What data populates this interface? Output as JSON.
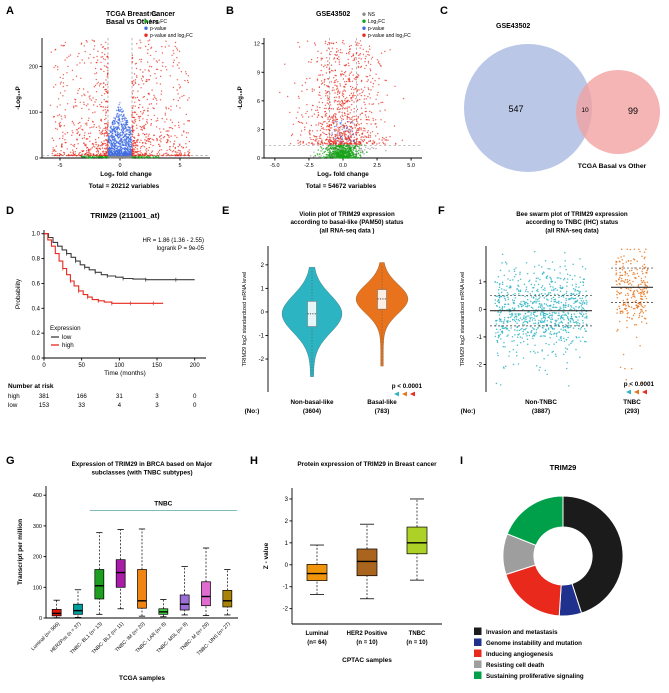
{
  "panels": {
    "A": {
      "letter": "A",
      "caption": "Total = 20212 variables"
    },
    "B": {
      "letter": "B",
      "caption": "Total = 54672 variables"
    },
    "C": {
      "letter": "C"
    },
    "D": {
      "letter": "D"
    },
    "E": {
      "letter": "E"
    },
    "F": {
      "letter": "F"
    },
    "G": {
      "letter": "G"
    },
    "H": {
      "letter": "H"
    },
    "I": {
      "letter": "I"
    }
  },
  "chart_data": [
    {
      "panel": "A",
      "type": "scatter",
      "variant": "volcano",
      "title_lines": [
        "TCGA Breast Cancer",
        "Basal vs Others"
      ],
      "xlabel": "Log₂ fold change",
      "ylabel": "-Log₁₀P",
      "xlim": [
        -6.5,
        7.5
      ],
      "ylim": [
        0,
        262
      ],
      "xticks": [
        -5,
        0,
        5
      ],
      "xtick_labels": [
        "-5",
        "0",
        "5"
      ],
      "yticks": [
        0,
        100,
        200
      ],
      "ytick_labels": [
        "0",
        "100",
        "200"
      ],
      "fc_cutoff": 1,
      "p_cutoff": 5,
      "legend": [
        {
          "label": "NS",
          "color": "#8a8a8a"
        },
        {
          "label": "Log₂FC",
          "color": "#17a317"
        },
        {
          "label": "p-value",
          "color": "#3d6be0"
        },
        {
          "label": "p-value and log₂FC",
          "color": "#e8291c"
        }
      ],
      "total_variables": 20212
    },
    {
      "panel": "B",
      "type": "scatter",
      "variant": "volcano",
      "title_lines": [
        "GSE43502"
      ],
      "xlabel": "Log₂ fold change",
      "ylabel": "-Log₁₀P",
      "xlim": [
        -5.8,
        5.8
      ],
      "ylim": [
        0,
        12.6
      ],
      "xticks": [
        -5,
        -2.5,
        0,
        2.5,
        5
      ],
      "xtick_labels": [
        "-5.0",
        "-2.5",
        "0.0",
        "2.5",
        "5.0"
      ],
      "yticks": [
        0,
        3,
        6,
        9,
        12
      ],
      "ytick_labels": [
        "0",
        "3",
        "6",
        "9",
        "12"
      ],
      "fc_cutoff": 1,
      "p_cutoff": 1.3,
      "legend": [
        {
          "label": "NS",
          "color": "#8a8a8a"
        },
        {
          "label": "Log₂FC",
          "color": "#17a317"
        },
        {
          "label": "p-value",
          "color": "#3d6be0"
        },
        {
          "label": "p-value and log₂FC",
          "color": "#e8291c"
        }
      ],
      "total_variables": 54672
    },
    {
      "panel": "C",
      "type": "venn",
      "left": {
        "label": "GSE43502",
        "count": "547",
        "color": "#b5c2e4"
      },
      "right": {
        "label": "TCGA Basal vs Other",
        "count": "99",
        "color": "#f2a0a0"
      },
      "overlap": "10"
    },
    {
      "panel": "D",
      "type": "line",
      "variant": "kaplan-meier",
      "title": "TRIM29 (211001_at)",
      "hr_text": "HR = 1.86 (1.36 - 2.55)",
      "logrank_text": "logrank P = 9e-05",
      "xlabel": "Time (months)",
      "ylabel": "Probability",
      "xlim": [
        0,
        215
      ],
      "ylim": [
        0,
        1.03
      ],
      "xticks": [
        0,
        50,
        100,
        150,
        200
      ],
      "xtick_labels": [
        "0",
        "50",
        "100",
        "150",
        "200"
      ],
      "yticks": [
        0,
        0.2,
        0.4,
        0.6,
        0.8,
        1.0
      ],
      "ytick_labels": [
        "0.0",
        "0.2",
        "0.4",
        "0.6",
        "0.8",
        "1.0"
      ],
      "legend_title": "Expression",
      "series": [
        {
          "name": "low",
          "color": "#3f3f3f",
          "points": [
            [
              0,
              1
            ],
            [
              6,
              0.97
            ],
            [
              12,
              0.93
            ],
            [
              18,
              0.9
            ],
            [
              24,
              0.87
            ],
            [
              30,
              0.84
            ],
            [
              36,
              0.81
            ],
            [
              42,
              0.78
            ],
            [
              48,
              0.75
            ],
            [
              54,
              0.73
            ],
            [
              60,
              0.71
            ],
            [
              68,
              0.69
            ],
            [
              76,
              0.67
            ],
            [
              84,
              0.66
            ],
            [
              95,
              0.65
            ],
            [
              105,
              0.64
            ],
            [
              118,
              0.635
            ],
            [
              135,
              0.63
            ],
            [
              150,
              0.63
            ],
            [
              175,
              0.63
            ],
            [
              200,
              0.63
            ]
          ]
        },
        {
          "name": "high",
          "color": "#e8291c",
          "points": [
            [
              0,
              1
            ],
            [
              5,
              0.95
            ],
            [
              10,
              0.9
            ],
            [
              15,
              0.84
            ],
            [
              20,
              0.78
            ],
            [
              25,
              0.72
            ],
            [
              30,
              0.67
            ],
            [
              35,
              0.62
            ],
            [
              40,
              0.58
            ],
            [
              46,
              0.54
            ],
            [
              52,
              0.51
            ],
            [
              58,
              0.49
            ],
            [
              64,
              0.47
            ],
            [
              72,
              0.46
            ],
            [
              80,
              0.45
            ],
            [
              90,
              0.44
            ],
            [
              100,
              0.44
            ],
            [
              115,
              0.44
            ],
            [
              130,
              0.44
            ],
            [
              145,
              0.44
            ],
            [
              158,
              0.44
            ]
          ]
        }
      ],
      "risk_table": {
        "title": "Number at risk",
        "rows": [
          {
            "label": "high",
            "color": "#2b2b2b",
            "values": [
              "381",
              "166",
              "31",
              "3",
              "0"
            ]
          },
          {
            "label": "low",
            "color": "#e8291c",
            "values": [
              "153",
              "33",
              "4",
              "3",
              "0"
            ]
          }
        ]
      }
    },
    {
      "panel": "E",
      "type": "violin",
      "title_lines": [
        "Violin plot of TRIM29 expression",
        "according to basal-like (PAM50) status",
        "(all RNA-seq data )"
      ],
      "ylabel": "TRIM29 log2 standardized mRNA level",
      "ylim": [
        -3.4,
        2.8
      ],
      "yticks": [
        -2,
        -1,
        0,
        1,
        2
      ],
      "ytick_labels": [
        "-2",
        "-1",
        "0",
        "1",
        "2"
      ],
      "x_axis_prefix": "(No:)",
      "p_text": "p < 0.0001",
      "groups": [
        {
          "name": "Non-basal-like",
          "n": "(3604)",
          "color": "#2db4c3",
          "median": -0.08,
          "q1": -0.62,
          "q3": 0.45,
          "min": -2.75,
          "max": 1.9
        },
        {
          "name": "Basal-like",
          "n": "(783)",
          "color": "#e8731c",
          "median": 0.55,
          "q1": 0.12,
          "q3": 0.95,
          "min": -2.3,
          "max": 2.1
        }
      ]
    },
    {
      "panel": "F",
      "type": "beeswarm",
      "title_lines": [
        "Bee swarm plot of TRIM29 expression",
        "according to TNBC (IHC) status",
        "(all RNA-seq data)"
      ],
      "ylabel": "TRIM29 log2 standardized mRNA level",
      "ylim": [
        -3.0,
        2.3
      ],
      "yticks": [
        -2,
        -1,
        0,
        1
      ],
      "ytick_labels": [
        "-2",
        "-1",
        "0",
        "1"
      ],
      "x_axis_prefix": "(No:)",
      "p_text": "p < 0.0001",
      "groups": [
        {
          "name": "Non-TNBC",
          "n": "(3887)",
          "color": "#2db4c3",
          "median": -0.05,
          "q1": -0.6,
          "q3": 0.5,
          "mean": -0.05,
          "sd": 0.72
        },
        {
          "name": "TNBC",
          "n": "(293)",
          "color": "#e8731c",
          "median": 0.8,
          "q1": 0.25,
          "q3": 1.5,
          "mean": 0.75,
          "sd": 0.75
        }
      ]
    },
    {
      "panel": "G",
      "type": "box",
      "title_lines": [
        "Expression of TRIM29 in BRCA based on Major",
        "subclasses (with TNBC subtypes)"
      ],
      "xlabel": "TCGA samples",
      "ylabel": "Transcript per million",
      "ylim": [
        0,
        430
      ],
      "yticks": [
        0,
        100,
        200,
        300,
        400
      ],
      "ytick_labels": [
        "0",
        "100",
        "200",
        "300",
        "400"
      ],
      "bracket": {
        "label": "TNBC",
        "from": 2,
        "to": 8,
        "y": 350
      },
      "categories": [
        {
          "label": "Luminal (n= 566)",
          "color": "#e3170d",
          "whislo": 1,
          "q1": 7,
          "med": 15,
          "q3": 28,
          "whishi": 58
        },
        {
          "label": "HER2Pos (n = 37)",
          "color": "#009d9d",
          "whislo": 2,
          "q1": 12,
          "med": 24,
          "q3": 45,
          "whishi": 92
        },
        {
          "label": "TNBC- BL1 (n= 13)",
          "color": "#1e9e1e",
          "whislo": 12,
          "q1": 62,
          "med": 105,
          "q3": 158,
          "whishi": 278
        },
        {
          "label": "TNBC- BL2 (n= 11)",
          "color": "#a81ca8",
          "whislo": 30,
          "q1": 100,
          "med": 148,
          "q3": 190,
          "whishi": 288
        },
        {
          "label": "TNBC- IM (n= 20)",
          "color": "#f08514",
          "whislo": 6,
          "q1": 32,
          "med": 56,
          "q3": 158,
          "whishi": 290
        },
        {
          "label": "TNBC- LAR (n= 8)",
          "color": "#3ecc3e",
          "whislo": 4,
          "q1": 12,
          "med": 20,
          "q3": 30,
          "whishi": 60
        },
        {
          "label": "TNBC- MSL (n= 8)",
          "color": "#9b6fd6",
          "whislo": 10,
          "q1": 26,
          "med": 45,
          "q3": 75,
          "whishi": 168
        },
        {
          "label": "TNBC- M (n= 29)",
          "color": "#df6cce",
          "whislo": 8,
          "q1": 40,
          "med": 70,
          "q3": 118,
          "whishi": 228
        },
        {
          "label": "TNBC- UNS (n= 27)",
          "color": "#a98307",
          "whislo": 10,
          "q1": 36,
          "med": 56,
          "q3": 90,
          "whishi": 158
        }
      ]
    },
    {
      "panel": "H",
      "type": "box",
      "title_lines": [
        "Protein expression of TRIM29 in Breast cancer"
      ],
      "xlabel": "CPTAC samples",
      "ylabel": "Z - value",
      "ylim": [
        -2.7,
        3.5
      ],
      "yticks": [
        -2,
        -1,
        0,
        1,
        2,
        3
      ],
      "ytick_labels": [
        "-2",
        "-1",
        "0",
        "1",
        "2",
        "3"
      ],
      "categories": [
        {
          "label": "Luminal",
          "n": "(n= 64)",
          "color": "#f0940a",
          "whislo": -1.35,
          "q1": -0.72,
          "med": -0.4,
          "q3": 0.02,
          "whishi": 0.9
        },
        {
          "label": "HER2 Positive",
          "n": "(n = 10)",
          "color": "#a9641e",
          "whislo": -1.55,
          "q1": -0.5,
          "med": 0.15,
          "q3": 0.72,
          "whishi": 1.85
        },
        {
          "label": "TNBC",
          "n": "(n = 10)",
          "color": "#aed127",
          "whislo": -0.7,
          "q1": 0.5,
          "med": 1.0,
          "q3": 1.72,
          "whishi": 3.0
        }
      ]
    },
    {
      "panel": "I",
      "type": "pie",
      "variant": "donut",
      "title": "TRIM29",
      "slices": [
        {
          "label": "Invasion and metastasis",
          "color": "#1b1b1b",
          "pct": 45
        },
        {
          "label": "Genome instability and mutation",
          "color": "#20318d",
          "pct": 6
        },
        {
          "label": "Inducing angiogenesis",
          "color": "#e8291c",
          "pct": 19
        },
        {
          "label": "Resisting cell death",
          "color": "#9e9e9e",
          "pct": 11
        },
        {
          "label": "Sustaining proliferative signaling",
          "color": "#00a04a",
          "pct": 19
        }
      ]
    }
  ]
}
